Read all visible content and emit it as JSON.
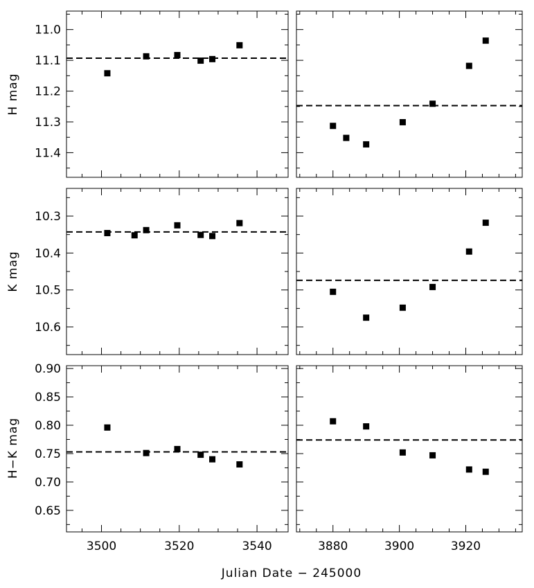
{
  "figure": {
    "xlabel": "Julian Date − 245000",
    "row_labels": [
      "H mag",
      "K mag",
      "H−K mag"
    ]
  },
  "chart_data": [
    {
      "type": "scatter",
      "title": "",
      "ylabel": "H mag",
      "xlim": [
        3491,
        3548
      ],
      "ylim": [
        11.48,
        10.94
      ],
      "y_inverted": true,
      "xticks_major": [
        3500,
        3520,
        3540
      ],
      "xticks_minor": [
        3495,
        3505,
        3510,
        3515,
        3525,
        3530,
        3535,
        3545
      ],
      "xtick_labels_shown": false,
      "yticks_major": [
        11.0,
        11.1,
        11.2,
        11.3,
        11.4
      ],
      "ytick_labels": [
        "11.0",
        "11.1",
        "11.2",
        "11.3",
        "11.4"
      ],
      "mean_line": 11.093,
      "x": [
        3501.5,
        3511.5,
        3519.5,
        3525.5,
        3528.5,
        3535.5
      ],
      "y": [
        11.142,
        11.087,
        11.083,
        11.101,
        11.096,
        11.051
      ]
    },
    {
      "type": "scatter",
      "title": "",
      "ylabel": "",
      "xlim": [
        3869,
        3937
      ],
      "ylim": [
        11.48,
        10.94
      ],
      "y_inverted": true,
      "xticks_major": [
        3880,
        3900,
        3920
      ],
      "xticks_minor": [
        3870,
        3875,
        3885,
        3890,
        3895,
        3905,
        3910,
        3915,
        3925,
        3930,
        3935
      ],
      "xtick_labels_shown": false,
      "mean_line": 11.247,
      "x": [
        3880,
        3884,
        3890,
        3901,
        3910,
        3921,
        3926
      ],
      "y": [
        11.313,
        11.352,
        11.373,
        11.301,
        11.241,
        11.118,
        11.036
      ]
    },
    {
      "type": "scatter",
      "title": "",
      "ylabel": "K mag",
      "xlim": [
        3491,
        3548
      ],
      "ylim": [
        10.675,
        10.225
      ],
      "y_inverted": true,
      "xticks_major": [
        3500,
        3520,
        3540
      ],
      "xticks_minor": [
        3495,
        3505,
        3510,
        3515,
        3525,
        3530,
        3535,
        3545
      ],
      "xtick_labels_shown": false,
      "yticks_major": [
        10.3,
        10.4,
        10.5,
        10.6
      ],
      "ytick_labels": [
        "10.3",
        "10.4",
        "10.5",
        "10.6"
      ],
      "mean_line": 10.343,
      "x": [
        3501.5,
        3508.5,
        3511.5,
        3519.5,
        3525.5,
        3528.5,
        3535.5
      ],
      "y": [
        10.346,
        10.352,
        10.338,
        10.325,
        10.351,
        10.354,
        10.319
      ]
    },
    {
      "type": "scatter",
      "title": "",
      "ylabel": "",
      "xlim": [
        3869,
        3937
      ],
      "ylim": [
        10.675,
        10.225
      ],
      "y_inverted": true,
      "xticks_major": [
        3880,
        3900,
        3920
      ],
      "xticks_minor": [
        3870,
        3875,
        3885,
        3890,
        3895,
        3905,
        3910,
        3915,
        3925,
        3930,
        3935
      ],
      "xtick_labels_shown": false,
      "mean_line": 10.474,
      "x": [
        3880,
        3890,
        3901,
        3910,
        3921,
        3926
      ],
      "y": [
        10.505,
        10.575,
        10.548,
        10.492,
        10.396,
        10.318
      ]
    },
    {
      "type": "scatter",
      "title": "",
      "ylabel": "H−K mag",
      "xlim": [
        3491,
        3548
      ],
      "ylim": [
        0.612,
        0.905
      ],
      "y_inverted": false,
      "xticks_major": [
        3500,
        3520,
        3540
      ],
      "xticks_minor": [
        3495,
        3505,
        3510,
        3515,
        3525,
        3530,
        3535,
        3545
      ],
      "xtick_labels": [
        "3500",
        "3520",
        "3540"
      ],
      "xtick_labels_shown": true,
      "yticks_major": [
        0.65,
        0.7,
        0.75,
        0.8,
        0.85,
        0.9
      ],
      "ytick_labels": [
        "0.65",
        "0.70",
        "0.75",
        "0.80",
        "0.85",
        "0.90"
      ],
      "mean_line": 0.753,
      "x": [
        3501.5,
        3511.5,
        3519.5,
        3525.5,
        3528.5,
        3535.5
      ],
      "y": [
        0.796,
        0.751,
        0.758,
        0.748,
        0.74,
        0.731
      ]
    },
    {
      "type": "scatter",
      "title": "",
      "ylabel": "",
      "xlim": [
        3869,
        3937
      ],
      "ylim": [
        0.612,
        0.905
      ],
      "y_inverted": false,
      "xticks_major": [
        3880,
        3900,
        3920
      ],
      "xticks_minor": [
        3870,
        3875,
        3885,
        3890,
        3895,
        3905,
        3910,
        3915,
        3925,
        3930,
        3935
      ],
      "xtick_labels": [
        "3880",
        "3900",
        "3920"
      ],
      "xtick_labels_shown": true,
      "mean_line": 0.774,
      "x": [
        3880,
        3890,
        3901,
        3910,
        3921,
        3926
      ],
      "y": [
        0.807,
        0.798,
        0.752,
        0.747,
        0.722,
        0.718
      ]
    }
  ]
}
